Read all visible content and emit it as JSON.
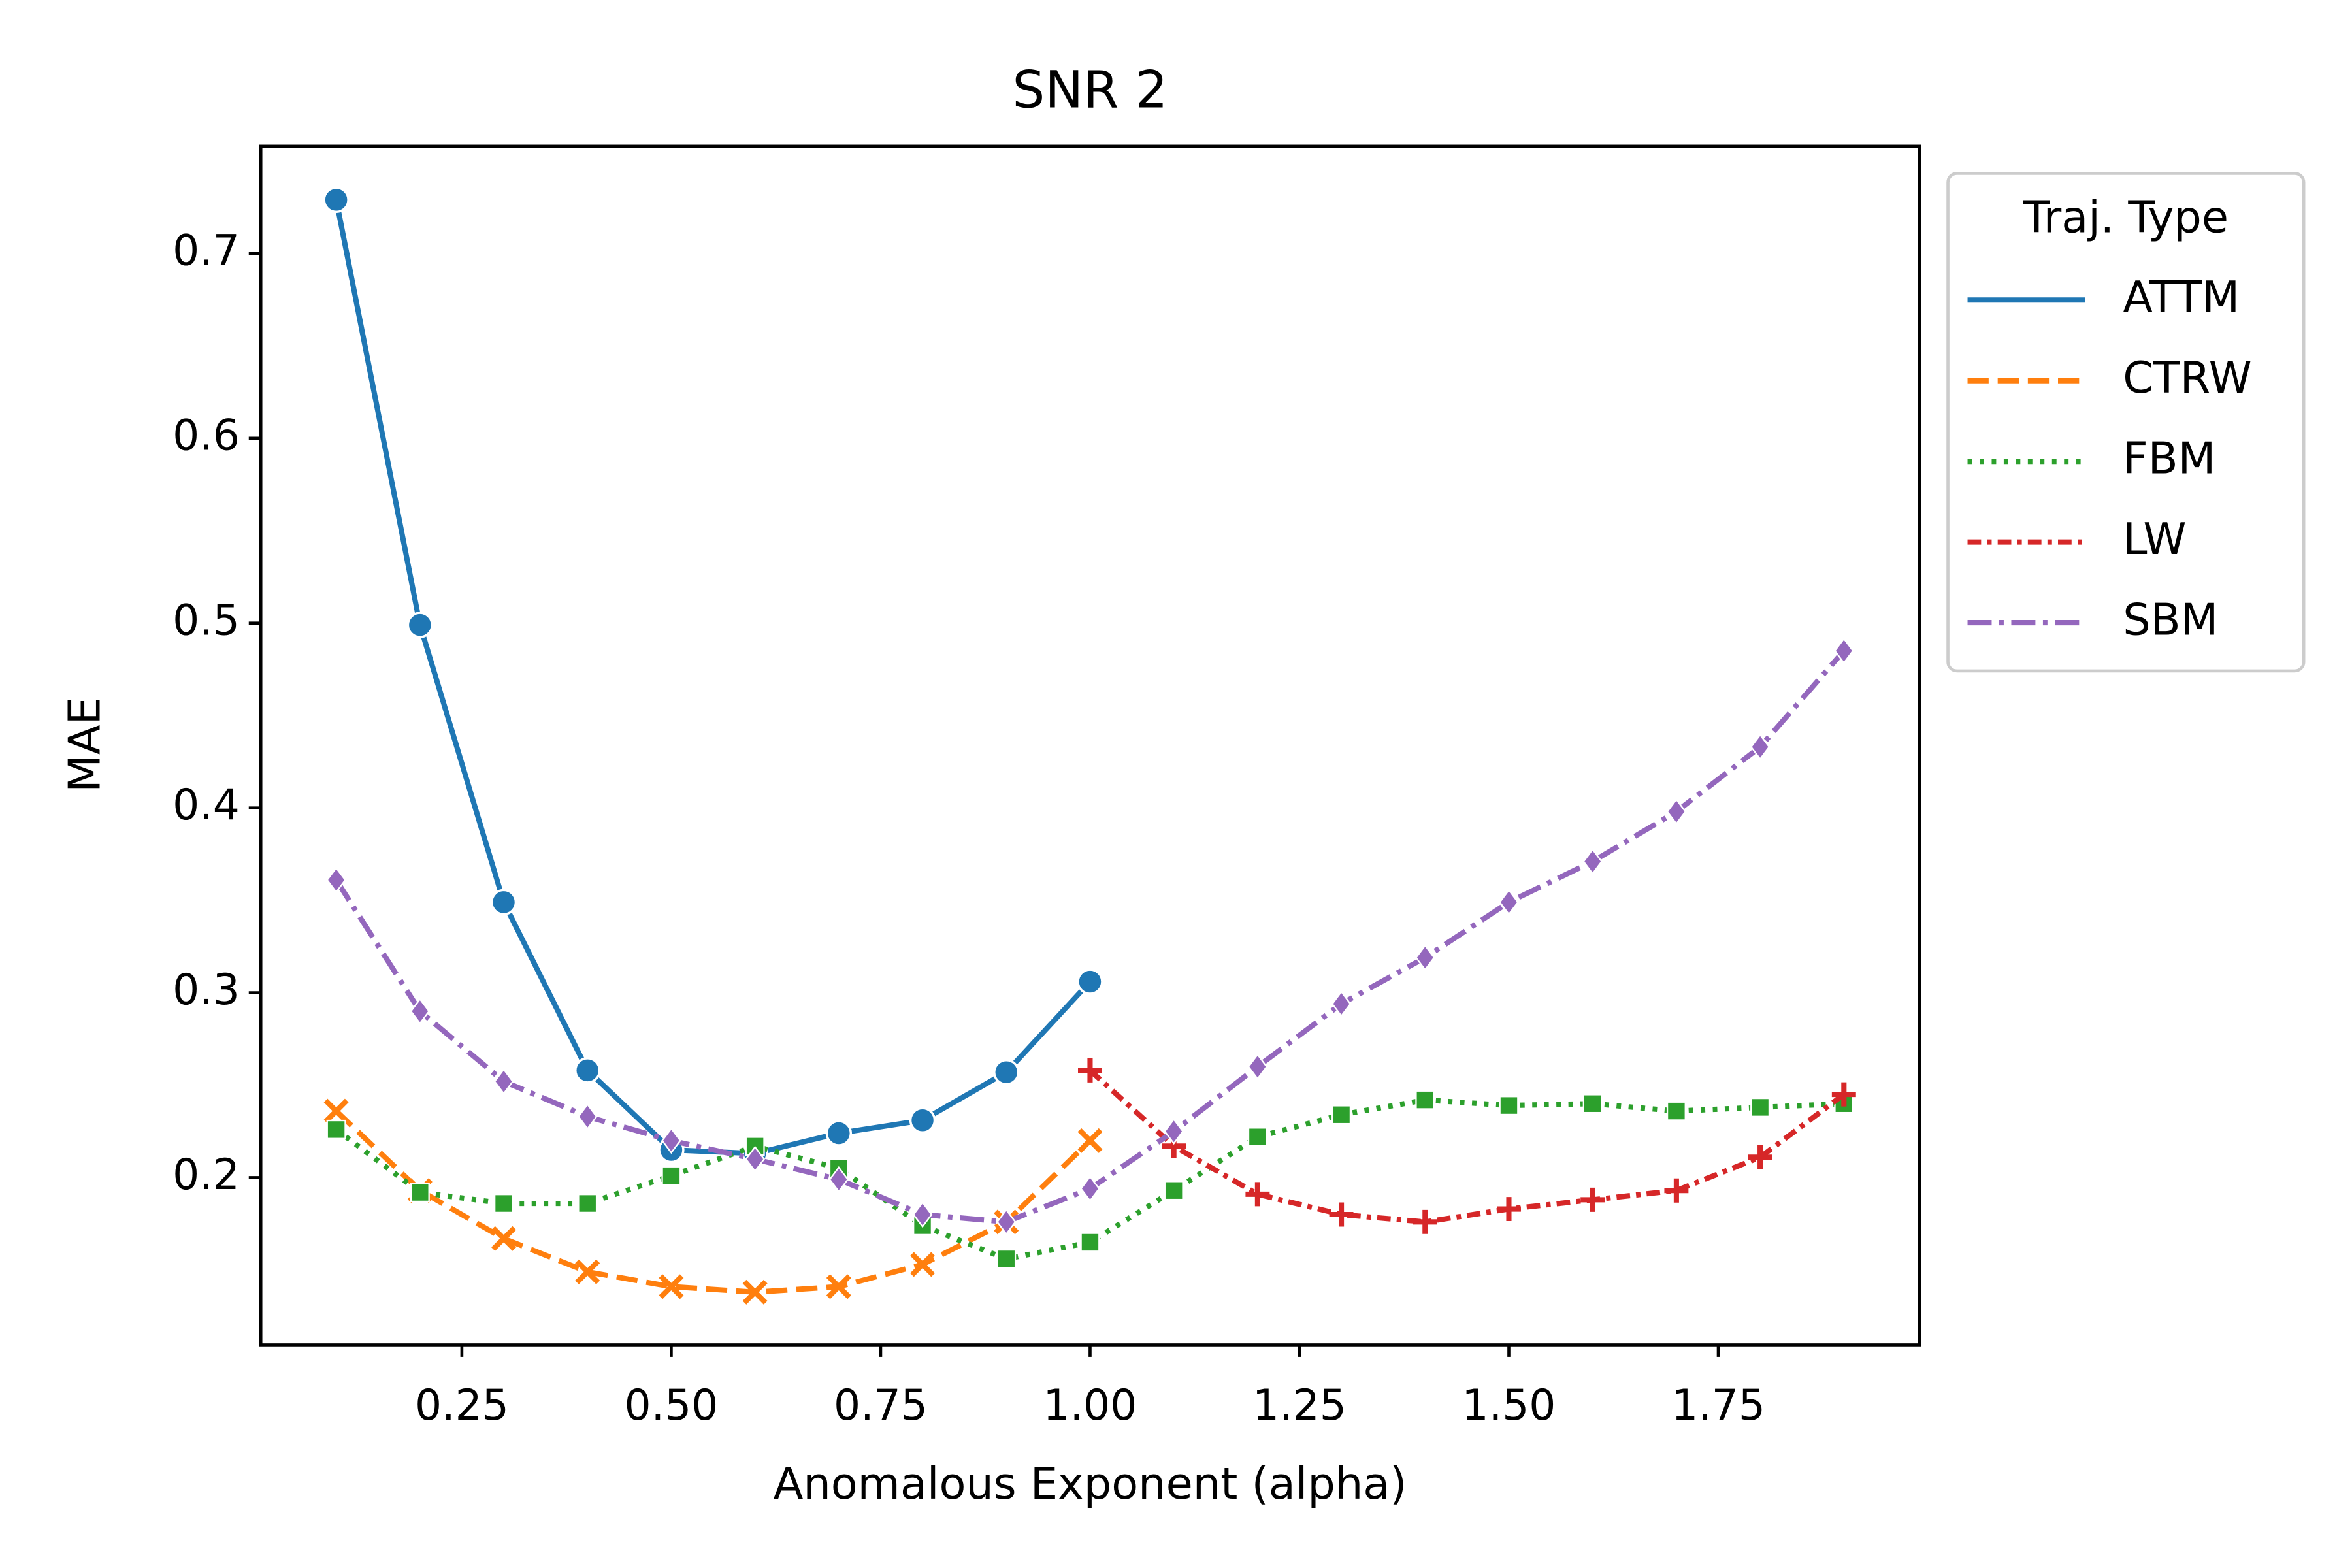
{
  "chart_data": {
    "type": "line",
    "title": "SNR 2",
    "x_label": "Anomalous Exponent (alpha)",
    "y_label": "MAE",
    "x": [
      0.1,
      0.2,
      0.3,
      0.4,
      0.5,
      0.6,
      0.7,
      0.8,
      0.9,
      1.0,
      1.1,
      1.2,
      1.3,
      1.4,
      1.5,
      1.6,
      1.7,
      1.8,
      1.9
    ],
    "xlim": [
      0.01,
      1.99
    ],
    "xticks": [
      {
        "value": 0.25,
        "label": "0.25"
      },
      {
        "value": 0.5,
        "label": "0.50"
      },
      {
        "value": 0.75,
        "label": "0.75"
      },
      {
        "value": 1.0,
        "label": "1.00"
      },
      {
        "value": 1.25,
        "label": "1.25"
      },
      {
        "value": 1.5,
        "label": "1.50"
      },
      {
        "value": 1.75,
        "label": "1.75"
      }
    ],
    "ylim": [
      0.1095,
      0.758
    ],
    "yticks": [
      0.2,
      0.3,
      0.4,
      0.5,
      0.6,
      0.7
    ],
    "grid": false,
    "legend": {
      "title": "Traj. Type",
      "position": "outside upper right"
    },
    "series": [
      {
        "name": "ATTM",
        "color": "#1f77b4",
        "dash": "",
        "marker": "circle",
        "values": [
          0.729,
          0.499,
          0.349,
          0.258,
          0.215,
          0.213,
          0.224,
          0.231,
          0.257,
          0.306,
          null,
          null,
          null,
          null,
          null,
          null,
          null,
          null,
          null
        ]
      },
      {
        "name": "CTRW",
        "color": "#ff7f0e",
        "dash": "14 6",
        "marker": "x",
        "values": [
          0.236,
          0.193,
          0.167,
          0.149,
          0.141,
          0.138,
          0.141,
          0.153,
          0.176,
          0.22,
          null,
          null,
          null,
          null,
          null,
          null,
          null,
          null,
          null
        ]
      },
      {
        "name": "FBM",
        "color": "#2ca02c",
        "dash": "3 5",
        "marker": "square",
        "values": [
          0.226,
          0.192,
          0.186,
          0.186,
          0.201,
          0.217,
          0.205,
          0.174,
          0.156,
          0.165,
          0.193,
          0.222,
          0.234,
          0.242,
          0.239,
          0.24,
          0.236,
          0.238,
          0.24
        ]
      },
      {
        "name": "LW",
        "color": "#d62728",
        "dash": "9 4 3 4",
        "marker": "plus",
        "values": [
          null,
          null,
          null,
          null,
          null,
          null,
          null,
          null,
          null,
          0.258,
          0.217,
          0.191,
          0.18,
          0.176,
          0.183,
          0.188,
          0.193,
          0.211,
          0.245
        ]
      },
      {
        "name": "SBM",
        "color": "#9467bd",
        "dash": "16 5 3 5",
        "marker": "diamond",
        "values": [
          0.361,
          0.29,
          0.252,
          0.233,
          0.22,
          0.21,
          0.199,
          0.18,
          0.176,
          0.194,
          0.225,
          0.26,
          0.294,
          0.319,
          0.349,
          0.371,
          0.398,
          0.433,
          0.485
        ]
      }
    ]
  }
}
